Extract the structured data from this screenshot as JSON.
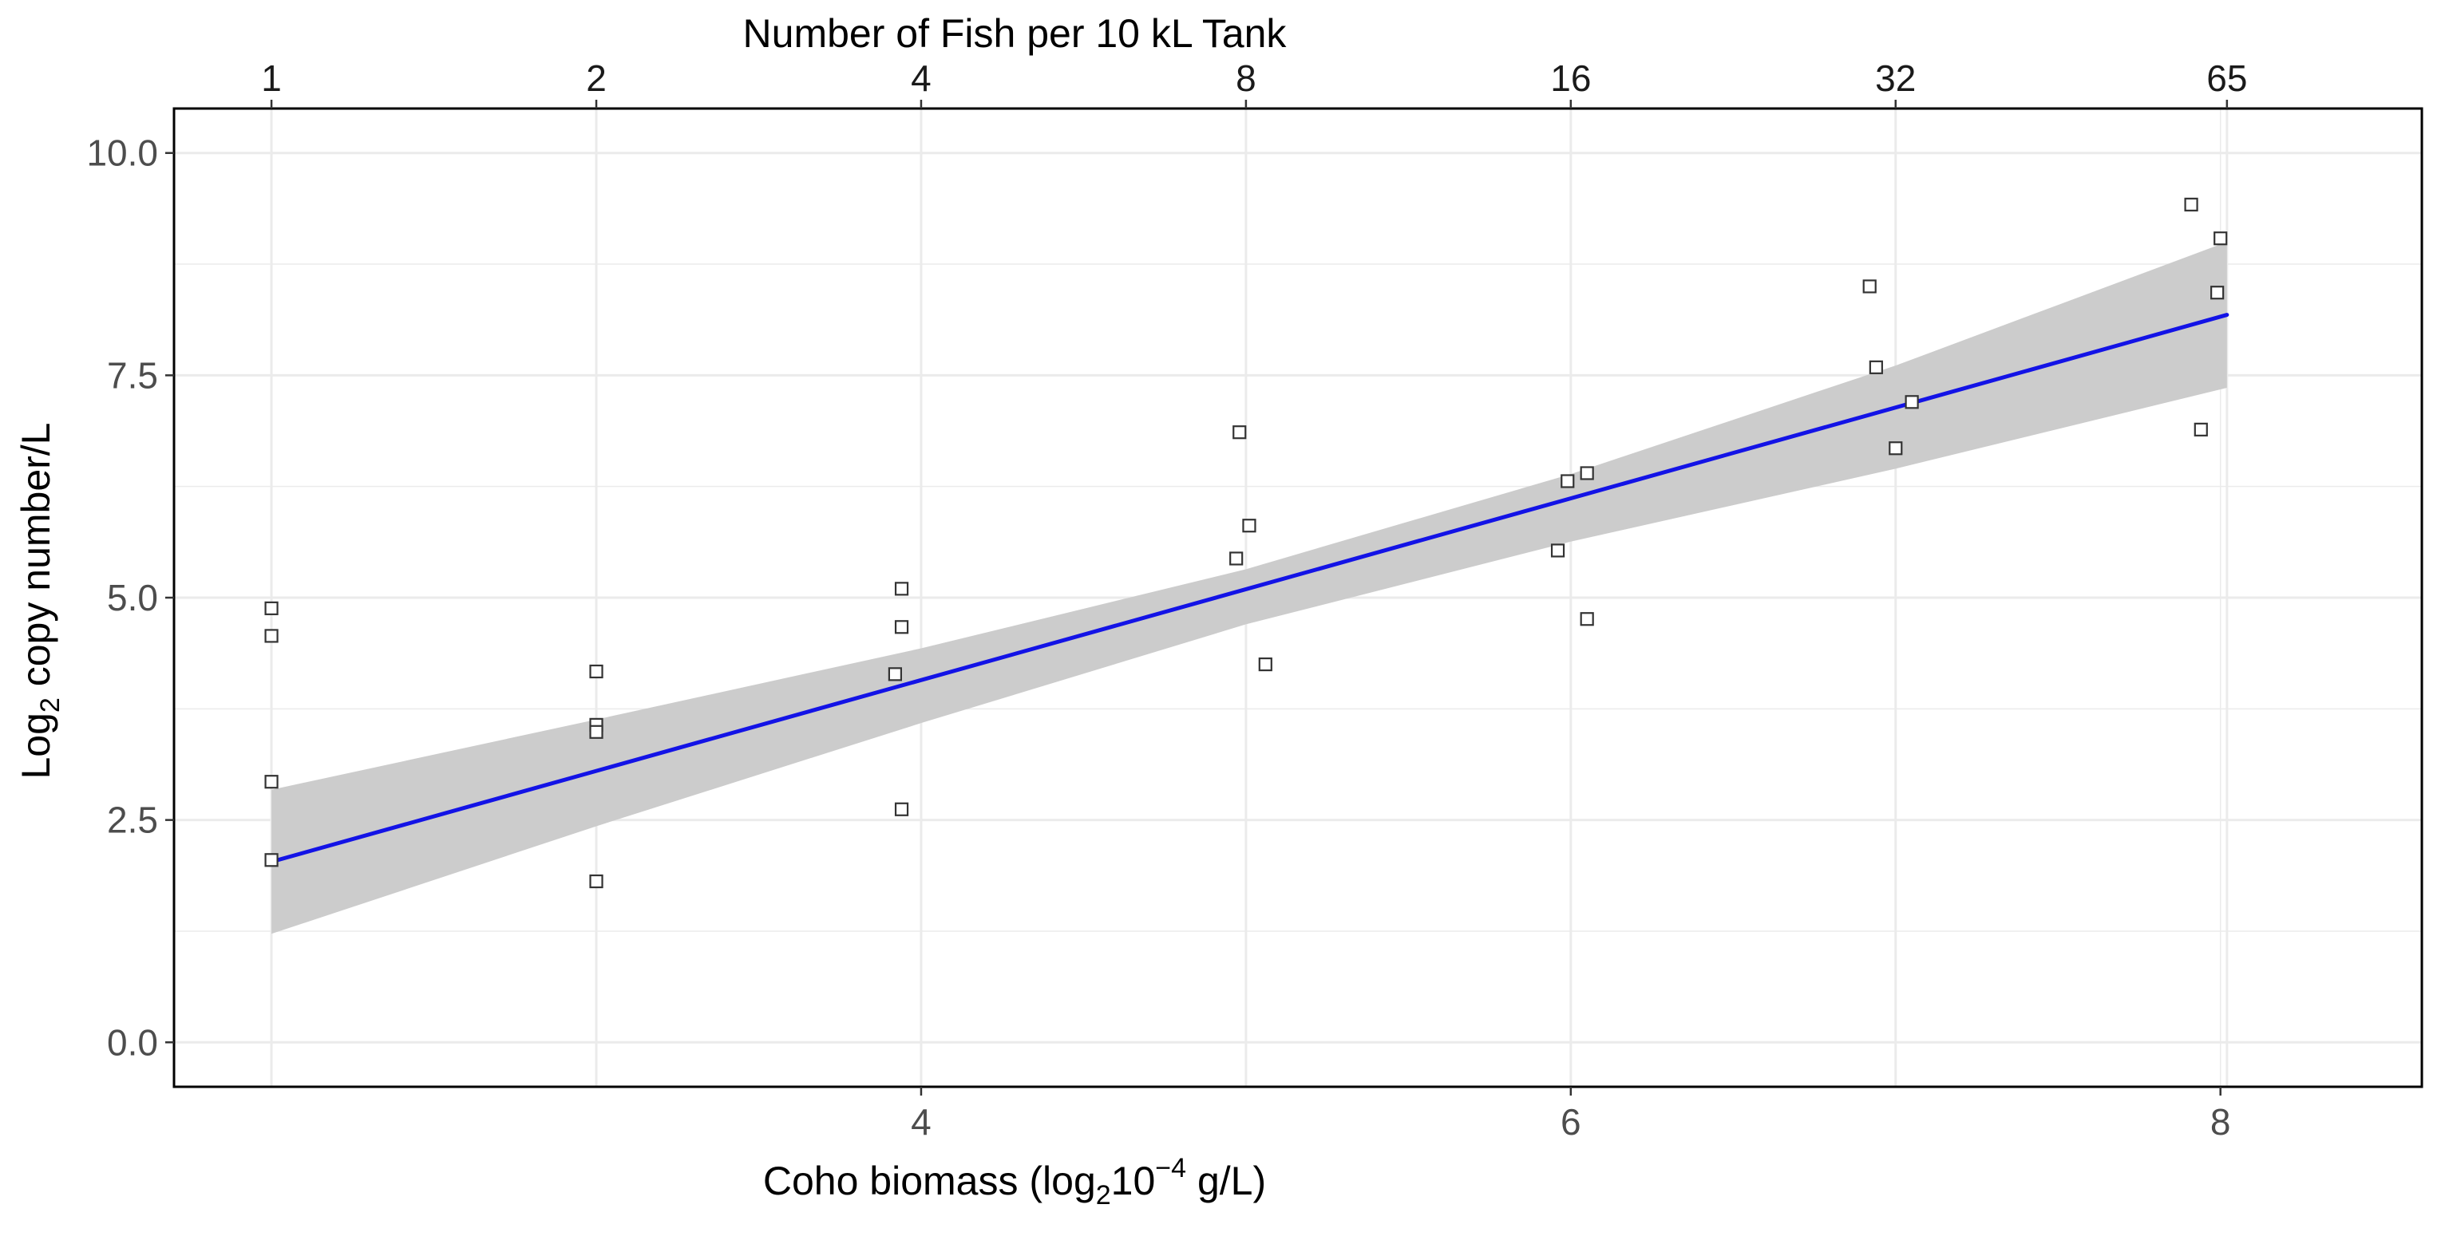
{
  "chart_data": {
    "type": "scatter",
    "title": "",
    "xlabel": {
      "pre": "Coho biomass (log",
      "sub": "2",
      "mid": "10",
      "sup": "−4",
      "post": " g/L)"
    },
    "ylabel": {
      "pre": "Log",
      "sub": "2",
      "post": " copy number/L"
    },
    "top_axis": {
      "title": "Number of Fish per 10 kL Tank",
      "ticks": [
        {
          "label": "1",
          "x": 2.0
        },
        {
          "label": "2",
          "x": 3.0
        },
        {
          "label": "4",
          "x": 4.0
        },
        {
          "label": "8",
          "x": 5.0
        },
        {
          "label": "16",
          "x": 6.0
        },
        {
          "label": "32",
          "x": 7.0
        },
        {
          "label": "65",
          "x": 8.02
        }
      ]
    },
    "xlim": [
      1.7,
      8.62
    ],
    "ylim": [
      -0.5,
      10.5
    ],
    "xticks": [
      {
        "label": "4",
        "value": 4
      },
      {
        "label": "6",
        "value": 6
      },
      {
        "label": "8",
        "value": 8
      }
    ],
    "yticks": [
      {
        "label": "0.0",
        "value": 0.0
      },
      {
        "label": "2.5",
        "value": 2.5
      },
      {
        "label": "5.0",
        "value": 5.0
      },
      {
        "label": "7.5",
        "value": 7.5
      },
      {
        "label": "10.0",
        "value": 10.0
      }
    ],
    "grid": true,
    "points": [
      [
        2.0,
        4.88
      ],
      [
        2.0,
        4.57
      ],
      [
        2.0,
        2.93
      ],
      [
        2.0,
        2.05
      ],
      [
        3.0,
        4.17
      ],
      [
        3.0,
        3.57
      ],
      [
        3.0,
        3.49
      ],
      [
        3.0,
        1.81
      ],
      [
        3.94,
        5.1
      ],
      [
        3.94,
        4.67
      ],
      [
        3.92,
        4.14
      ],
      [
        3.94,
        2.62
      ],
      [
        4.98,
        6.86
      ],
      [
        5.01,
        5.81
      ],
      [
        4.97,
        5.44
      ],
      [
        5.06,
        4.25
      ],
      [
        5.96,
        5.53
      ],
      [
        5.99,
        6.31
      ],
      [
        6.05,
        6.4
      ],
      [
        6.05,
        4.76
      ],
      [
        6.92,
        8.5
      ],
      [
        6.94,
        7.59
      ],
      [
        7.05,
        7.2
      ],
      [
        7.0,
        6.68
      ],
      [
        7.91,
        9.42
      ],
      [
        7.94,
        6.89
      ],
      [
        8.0,
        9.04
      ],
      [
        7.99,
        8.43
      ]
    ],
    "fit_line": {
      "x0": 2.0,
      "y0": 2.03,
      "x1": 8.02,
      "y1": 8.18,
      "color": "#1313e6"
    },
    "confidence_band": {
      "color": "#cccccc",
      "x": [
        2.0,
        3.0,
        4.0,
        5.0,
        6.0,
        7.0,
        8.02
      ],
      "upper": [
        2.84,
        3.63,
        4.43,
        5.32,
        6.39,
        7.61,
        9.0
      ],
      "lower": [
        1.22,
        2.43,
        3.59,
        4.7,
        5.63,
        6.45,
        7.36
      ]
    },
    "colors": {
      "grid": "#ebebeb",
      "panel_border": "#000000",
      "point_stroke": "#333333",
      "tick_text": "#4d4d4d"
    }
  }
}
